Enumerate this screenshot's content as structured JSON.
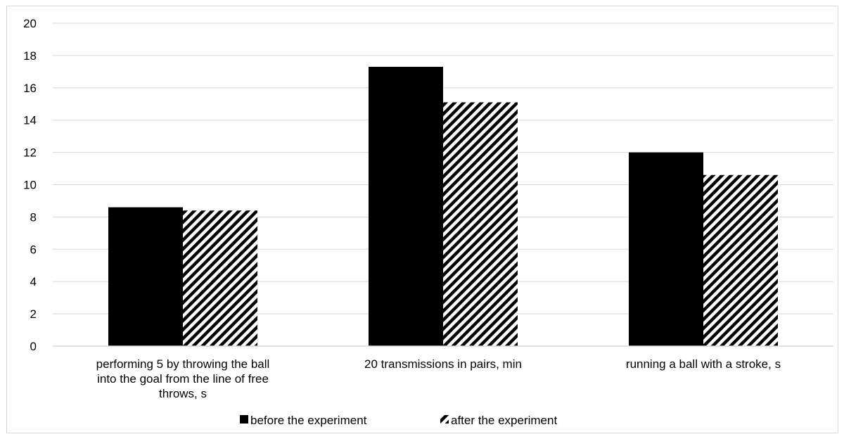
{
  "chart_data": {
    "type": "bar",
    "categories": [
      [
        "performing 5 by throwing the ball",
        "into the goal from the line of free",
        "throws, s"
      ],
      [
        "20 transmissions in pairs, min"
      ],
      [
        "running a ball with a stroke, s"
      ]
    ],
    "series": [
      {
        "name": "before the experiment",
        "values": [
          8.6,
          17.3,
          12.0
        ],
        "fill": "solid",
        "color": "#000000"
      },
      {
        "name": "after the experiment",
        "values": [
          8.4,
          15.1,
          10.6
        ],
        "fill": "diagonal-hatch",
        "color": "#000000"
      }
    ],
    "ylim": [
      0,
      20
    ],
    "yticks": [
      "0",
      "2",
      "4",
      "6",
      "8",
      "10",
      "12",
      "14",
      "16",
      "18",
      "20"
    ],
    "grid": true,
    "legend_position": "bottom-center",
    "gridline_color": "#d9d9d9"
  }
}
